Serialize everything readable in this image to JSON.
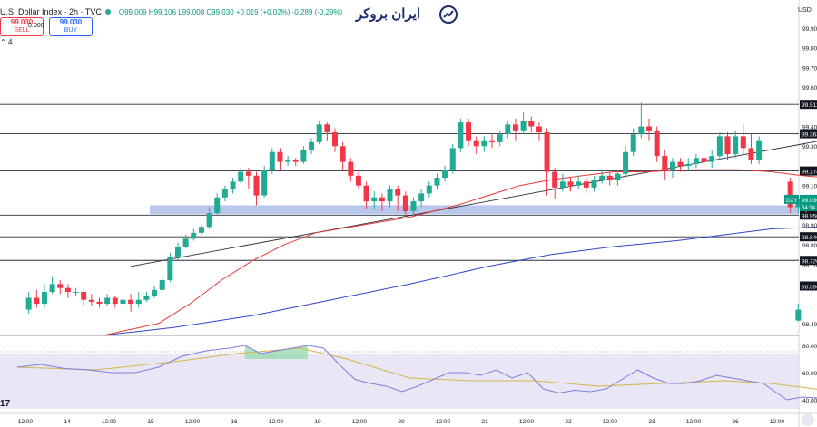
{
  "header": {
    "symbol_title": "U.S. Dollar Index · 2h · TVC",
    "ohlc": "O99.009 H99.106 L99.008 C99.030 +0.019 (+0.02%) -0.289 (-0.29%)",
    "sell_price": "99.030",
    "sell_label": "SELL",
    "buy_price": "99.030",
    "buy_label": "BUY",
    "spread": "0.000",
    "lot_indicator": "4",
    "currency": "USD"
  },
  "logo": {
    "text": "ایران بروکر",
    "color": "#1a2f6b"
  },
  "colors": {
    "up": "#22ab94",
    "down": "#f23645",
    "ma_fast": "#e53935",
    "ma_slow": "#2f46c8",
    "zone": "#aebde9",
    "rsi_line": "#7e7ede",
    "rsi_signal": "#d9b44a",
    "rsi_band": "#e9e6f6",
    "price_badge": "#089981"
  },
  "chart_data": {
    "type": "candlestick",
    "symbol": "DXY",
    "interval": "2h",
    "ylim": [
      98.33,
      99.95
    ],
    "y_ticks": [
      "99.900",
      "99.800",
      "99.700",
      "99.600",
      "99.400",
      "99.300",
      "99.100",
      "98.900",
      "98.800",
      "98.700",
      "98.600",
      "98.400"
    ],
    "x_ticks": [
      "12:00",
      "14",
      "12:00",
      "15",
      "12:00",
      "16",
      "12:00",
      "19",
      "12:00",
      "20",
      "12:00",
      "21",
      "12:00",
      "22",
      "12:00",
      "23",
      "12:00",
      "26",
      "12:00"
    ],
    "horizontal_levels": [
      {
        "price": 99.512,
        "label": "99.512"
      },
      {
        "price": 99.363,
        "label": "99.363"
      },
      {
        "price": 99.174,
        "label": "99.174"
      },
      {
        "price": 98.95,
        "label": "98.950"
      },
      {
        "price": 98.84,
        "label": "98.840"
      },
      {
        "price": 98.72,
        "label": "98.720"
      },
      {
        "price": 98.59,
        "label": "98.590"
      },
      {
        "price": 98.34,
        "label": ""
      }
    ],
    "support_zone": [
      98.955,
      99.0
    ],
    "trendline": [
      [
        14,
        98.69
      ],
      [
        115,
        99.42
      ]
    ],
    "last_price": {
      "label": "DXY",
      "value": "99.030",
      "countdown": "34:34"
    },
    "candles": [
      [
        99.0,
        98.415,
        98.47,
        98.41,
        98.5
      ],
      [
        1,
        98.47,
        98.53,
        98.45,
        98.56
      ],
      [
        2,
        98.53,
        98.5,
        98.48,
        98.57
      ],
      [
        3,
        98.5,
        98.56,
        98.48,
        98.6
      ],
      [
        4,
        98.56,
        98.6,
        98.55,
        98.64
      ],
      [
        5,
        98.6,
        98.58,
        98.55,
        98.62
      ],
      [
        6,
        98.58,
        98.56,
        98.53,
        98.6
      ],
      [
        7,
        98.56,
        98.56,
        98.54,
        98.58
      ],
      [
        8,
        98.56,
        98.52,
        98.49,
        98.57
      ],
      [
        9,
        98.52,
        98.51,
        98.49,
        98.55
      ],
      [
        10,
        98.51,
        98.5,
        98.48,
        98.53
      ],
      [
        11,
        98.5,
        98.53,
        98.49,
        98.55
      ],
      [
        12,
        98.53,
        98.5,
        98.48,
        98.54
      ],
      [
        13,
        98.5,
        98.52,
        98.47,
        98.54
      ],
      [
        14,
        98.52,
        98.5,
        98.46,
        98.55
      ],
      [
        15,
        98.5,
        98.52,
        98.48,
        98.56
      ],
      [
        16,
        98.52,
        98.54,
        98.51,
        98.56
      ],
      [
        17,
        98.54,
        98.57,
        98.53,
        98.59
      ],
      [
        18,
        98.57,
        98.62,
        98.56,
        98.64
      ],
      [
        19,
        98.62,
        98.74,
        98.61,
        98.76
      ],
      [
        20,
        98.74,
        98.79,
        98.72,
        98.81
      ],
      [
        21,
        98.79,
        98.83,
        98.78,
        98.85
      ],
      [
        22,
        98.83,
        98.86,
        98.82,
        98.88
      ],
      [
        23,
        98.86,
        98.89,
        98.85,
        98.9
      ],
      [
        24,
        98.89,
        98.96,
        98.88,
        98.99
      ],
      [
        25,
        98.96,
        99.04,
        98.95,
        99.06
      ],
      [
        26,
        99.04,
        99.08,
        99.02,
        99.1
      ],
      [
        27,
        99.08,
        99.12,
        99.06,
        99.14
      ],
      [
        28,
        99.12,
        99.17,
        99.11,
        99.19
      ],
      [
        29,
        99.17,
        99.15,
        99.08,
        99.19
      ],
      [
        30,
        99.15,
        99.05,
        99.0,
        99.17
      ],
      [
        31,
        99.05,
        99.18,
        99.04,
        99.2
      ],
      [
        32,
        99.18,
        99.27,
        99.16,
        99.29
      ],
      [
        33,
        99.27,
        99.22,
        99.18,
        99.29
      ],
      [
        34,
        99.22,
        99.23,
        99.2,
        99.25
      ],
      [
        35,
        99.23,
        99.22,
        99.2,
        99.24
      ],
      [
        36,
        99.22,
        99.28,
        99.21,
        99.3
      ],
      [
        37,
        99.28,
        99.32,
        99.26,
        99.34
      ],
      [
        38,
        99.32,
        99.41,
        99.31,
        99.43
      ],
      [
        39,
        99.41,
        99.37,
        99.33,
        99.42
      ],
      [
        40,
        99.37,
        99.3,
        99.27,
        99.39
      ],
      [
        41,
        99.3,
        99.22,
        99.18,
        99.32
      ],
      [
        42,
        99.22,
        99.15,
        99.12,
        99.24
      ],
      [
        43,
        99.15,
        99.1,
        99.08,
        99.17
      ],
      [
        44,
        99.1,
        99.02,
        98.98,
        99.12
      ],
      [
        45,
        99.02,
        99.04,
        98.98,
        99.07
      ],
      [
        46,
        99.04,
        99.02,
        98.97,
        99.06
      ],
      [
        47,
        99.02,
        99.08,
        98.99,
        99.1
      ],
      [
        48,
        99.08,
        99.05,
        98.97,
        99.1
      ],
      [
        49,
        99.05,
        98.97,
        98.95,
        99.07
      ],
      [
        50,
        98.97,
        99.02,
        98.95,
        99.04
      ],
      [
        51,
        99.02,
        99.06,
        98.99,
        99.08
      ],
      [
        52,
        99.06,
        99.1,
        99.04,
        99.12
      ],
      [
        53,
        99.1,
        99.14,
        99.08,
        99.16
      ],
      [
        54,
        99.14,
        99.18,
        99.12,
        99.2
      ],
      [
        55,
        99.18,
        99.29,
        99.16,
        99.31
      ],
      [
        56,
        99.29,
        99.42,
        99.27,
        99.44
      ],
      [
        57,
        99.42,
        99.33,
        99.3,
        99.44
      ],
      [
        58,
        99.33,
        99.3,
        99.26,
        99.35
      ],
      [
        59,
        99.3,
        99.33,
        99.27,
        99.35
      ],
      [
        60,
        99.33,
        99.32,
        99.29,
        99.36
      ],
      [
        61,
        99.32,
        99.36,
        99.3,
        99.38
      ],
      [
        62,
        99.36,
        99.41,
        99.34,
        99.43
      ],
      [
        63,
        99.41,
        99.38,
        99.33,
        99.44
      ],
      [
        64,
        99.38,
        99.43,
        99.36,
        99.47
      ],
      [
        65,
        99.43,
        99.4,
        99.37,
        99.45
      ],
      [
        66,
        99.4,
        99.37,
        99.33,
        99.42
      ],
      [
        67,
        99.37,
        99.17,
        99.05,
        99.39
      ],
      [
        68,
        99.17,
        99.09,
        99.03,
        99.19
      ],
      [
        69,
        99.09,
        99.12,
        99.07,
        99.16
      ],
      [
        70,
        99.12,
        99.1,
        99.07,
        99.14
      ],
      [
        71,
        99.1,
        99.12,
        99.08,
        99.15
      ],
      [
        72,
        99.12,
        99.09,
        99.06,
        99.14
      ],
      [
        73,
        99.09,
        99.13,
        99.07,
        99.15
      ],
      [
        74,
        99.13,
        99.15,
        99.11,
        99.18
      ],
      [
        75,
        99.15,
        99.13,
        99.1,
        99.17
      ],
      [
        76,
        99.13,
        99.16,
        99.1,
        99.18
      ],
      [
        77,
        99.16,
        99.27,
        99.14,
        99.3
      ],
      [
        78,
        99.27,
        99.36,
        99.25,
        99.39
      ],
      [
        79,
        99.36,
        99.4,
        99.34,
        99.52
      ],
      [
        80,
        99.4,
        99.38,
        99.33,
        99.44
      ],
      [
        81,
        99.38,
        99.25,
        99.22,
        99.4
      ],
      [
        82,
        99.25,
        99.18,
        99.13,
        99.28
      ],
      [
        83,
        99.18,
        99.22,
        99.14,
        99.24
      ],
      [
        84,
        99.22,
        99.2,
        99.17,
        99.24
      ],
      [
        85,
        99.2,
        99.21,
        99.18,
        99.24
      ],
      [
        86,
        99.21,
        99.24,
        99.19,
        99.26
      ],
      [
        87,
        99.24,
        99.22,
        99.18,
        99.26
      ],
      [
        88,
        99.22,
        99.25,
        99.19,
        99.28
      ],
      [
        89,
        99.25,
        99.35,
        99.23,
        99.37
      ],
      [
        90,
        99.35,
        99.26,
        99.23,
        99.37
      ],
      [
        91,
        99.26,
        99.35,
        99.24,
        99.38
      ],
      [
        92,
        99.35,
        99.29,
        99.26,
        99.41
      ],
      [
        93,
        99.29,
        99.23,
        99.21,
        99.36
      ],
      [
        94,
        99.23,
        99.33,
        99.21,
        99.35
      ],
      [
        98,
        99.12,
        98.99,
        98.96,
        99.14
      ],
      [
        99,
        98.99,
        99.03,
        98.96,
        99.05
      ],
      [
        100,
        99.03,
        99.01,
        98.96,
        99.05
      ],
      [
        101,
        99.01,
        99.02,
        98.97,
        99.04
      ],
      [
        102,
        99.02,
        98.99,
        98.97,
        99.03
      ],
      [
        103,
        99.009,
        99.03,
        99.008,
        99.106
      ]
    ],
    "ma_fast": [
      [
        11,
        98.34
      ],
      [
        18,
        98.4
      ],
      [
        22,
        98.5
      ],
      [
        26,
        98.62
      ],
      [
        30,
        98.72
      ],
      [
        34,
        98.8
      ],
      [
        38,
        98.86
      ],
      [
        44,
        98.9
      ],
      [
        50,
        98.94
      ],
      [
        56,
        99.0
      ],
      [
        60,
        99.05
      ],
      [
        64,
        99.1
      ],
      [
        68,
        99.13
      ],
      [
        72,
        99.15
      ],
      [
        76,
        99.17
      ],
      [
        80,
        99.17
      ],
      [
        86,
        99.18
      ],
      [
        92,
        99.18
      ],
      [
        96,
        99.17
      ],
      [
        100,
        99.15
      ],
      [
        103,
        99.14
      ]
    ],
    "ma_slow": [
      [
        11,
        98.34
      ],
      [
        20,
        98.38
      ],
      [
        30,
        98.44
      ],
      [
        40,
        98.52
      ],
      [
        50,
        98.6
      ],
      [
        60,
        98.69
      ],
      [
        68,
        98.75
      ],
      [
        76,
        98.79
      ],
      [
        84,
        98.82
      ],
      [
        90,
        98.85
      ],
      [
        96,
        98.88
      ],
      [
        103,
        98.89
      ]
    ],
    "rsi": {
      "ylim": [
        30,
        90
      ],
      "ticks": [
        "80.00",
        "60.00",
        "40.00"
      ],
      "band": [
        30,
        70
      ],
      "values": [
        [
          0,
          64
        ],
        [
          3,
          66
        ],
        [
          6,
          63
        ],
        [
          9,
          62
        ],
        [
          12,
          60
        ],
        [
          15,
          60
        ],
        [
          18,
          64
        ],
        [
          21,
          72
        ],
        [
          24,
          76
        ],
        [
          27,
          78
        ],
        [
          29,
          80
        ],
        [
          31,
          74
        ],
        [
          33,
          76
        ],
        [
          35,
          78
        ],
        [
          37,
          80
        ],
        [
          39,
          78
        ],
        [
          41,
          66
        ],
        [
          43,
          55
        ],
        [
          45,
          52
        ],
        [
          47,
          50
        ],
        [
          49,
          46
        ],
        [
          51,
          50
        ],
        [
          53,
          55
        ],
        [
          55,
          60
        ],
        [
          57,
          60
        ],
        [
          59,
          58
        ],
        [
          61,
          62
        ],
        [
          63,
          56
        ],
        [
          65,
          60
        ],
        [
          67,
          48
        ],
        [
          69,
          45
        ],
        [
          71,
          47
        ],
        [
          73,
          46
        ],
        [
          75,
          48
        ],
        [
          77,
          55
        ],
        [
          79,
          62
        ],
        [
          81,
          56
        ],
        [
          83,
          52
        ],
        [
          85,
          52
        ],
        [
          87,
          54
        ],
        [
          89,
          58
        ],
        [
          91,
          56
        ],
        [
          93,
          54
        ],
        [
          95,
          52
        ],
        [
          98,
          40
        ],
        [
          100,
          42
        ],
        [
          103,
          41
        ]
      ],
      "signal": [
        [
          0,
          64
        ],
        [
          10,
          62
        ],
        [
          20,
          68
        ],
        [
          28,
          74
        ],
        [
          36,
          78
        ],
        [
          42,
          70
        ],
        [
          50,
          56
        ],
        [
          58,
          54
        ],
        [
          66,
          54
        ],
        [
          74,
          50
        ],
        [
          82,
          52
        ],
        [
          90,
          54
        ],
        [
          96,
          52
        ],
        [
          103,
          47
        ]
      ],
      "overbought_fill_start": 29,
      "overbought_fill_end": 38
    }
  }
}
